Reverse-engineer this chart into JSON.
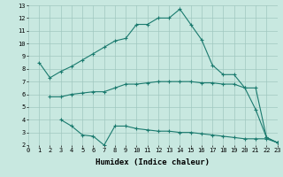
{
  "line1_x": [
    1,
    2,
    3,
    4,
    5,
    6,
    7,
    8,
    9,
    10,
    11,
    12,
    13,
    14,
    15,
    16,
    17,
    18,
    19,
    20,
    21,
    22,
    23
  ],
  "line1_y": [
    8.5,
    7.3,
    7.8,
    8.2,
    8.7,
    9.2,
    9.7,
    10.2,
    10.4,
    11.5,
    11.5,
    12.0,
    12.0,
    12.7,
    11.5,
    10.3,
    8.3,
    7.55,
    7.55,
    6.5,
    4.8,
    2.6,
    2.2
  ],
  "line2_x": [
    2,
    3,
    4,
    5,
    6,
    7,
    8,
    9,
    10,
    11,
    12,
    13,
    14,
    15,
    16,
    17,
    18,
    19,
    20,
    21,
    22,
    23
  ],
  "line2_y": [
    5.8,
    5.8,
    6.0,
    6.1,
    6.2,
    6.2,
    6.5,
    6.8,
    6.8,
    6.9,
    7.0,
    7.0,
    7.0,
    7.0,
    6.9,
    6.9,
    6.8,
    6.8,
    6.5,
    6.5,
    2.6,
    2.2
  ],
  "line3_x": [
    3,
    4,
    5,
    6,
    7,
    8,
    9,
    10,
    11,
    12,
    13,
    14,
    15,
    16,
    17,
    18,
    19,
    20,
    21,
    22,
    23
  ],
  "line3_y": [
    4.0,
    3.5,
    2.8,
    2.7,
    2.0,
    3.5,
    3.5,
    3.3,
    3.2,
    3.1,
    3.1,
    3.0,
    3.0,
    2.9,
    2.8,
    2.7,
    2.6,
    2.5,
    2.5,
    2.5,
    2.2
  ],
  "line_color": "#1a7a6e",
  "bg_color": "#c8e8e0",
  "grid_color": "#a0c8c0",
  "xlabel": "Humidex (Indice chaleur)",
  "xlim": [
    0,
    23
  ],
  "ylim": [
    2,
    13
  ],
  "xticks": [
    0,
    1,
    2,
    3,
    4,
    5,
    6,
    7,
    8,
    9,
    10,
    11,
    12,
    13,
    14,
    15,
    16,
    17,
    18,
    19,
    20,
    21,
    22,
    23
  ],
  "yticks": [
    2,
    3,
    4,
    5,
    6,
    7,
    8,
    9,
    10,
    11,
    12,
    13
  ],
  "tick_fontsize": 5.0,
  "xlabel_fontsize": 6.5,
  "marker": "+"
}
